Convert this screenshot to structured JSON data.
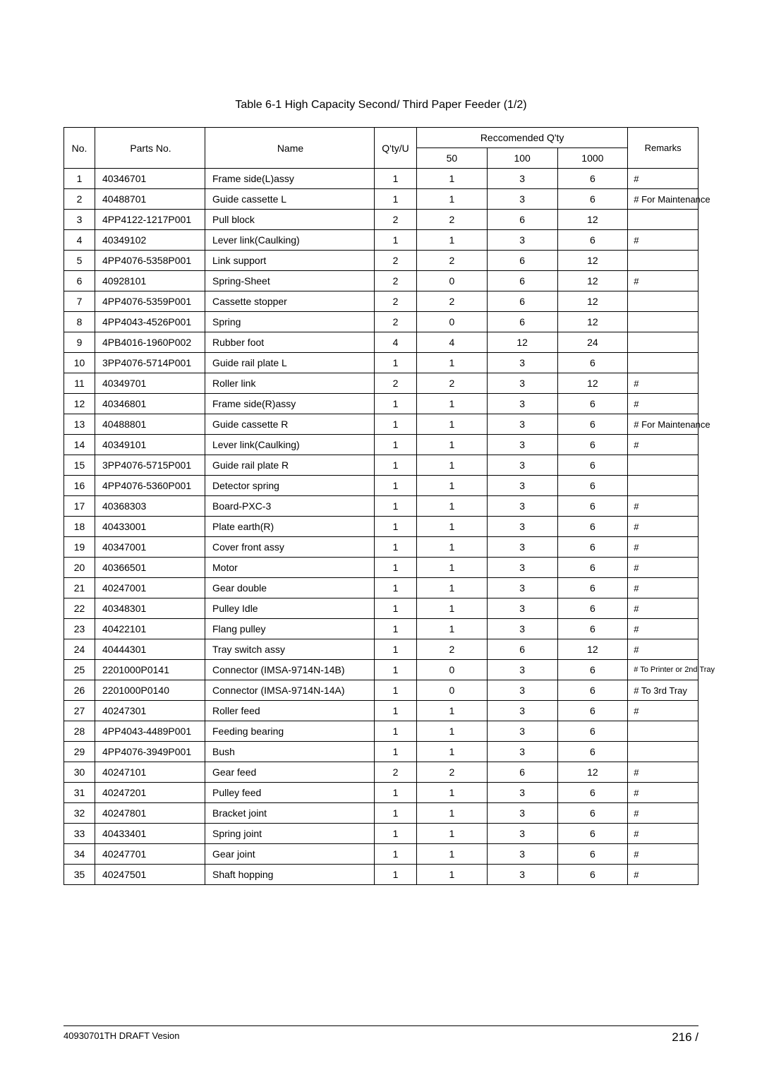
{
  "caption": "Table 6-1 High Capacity Second/ Third Paper Feeder (1/2)",
  "footer": {
    "left": "40930701TH  DRAFT Vesion",
    "right": "216 /"
  },
  "columns": {
    "no": "No.",
    "parts": "Parts No.",
    "name": "Name",
    "qtyu": "Q'ty/U",
    "recc": "Reccomended Q'ty",
    "r50": "50",
    "r100": "100",
    "r1000": "1000",
    "remarks": "Remarks"
  },
  "rows": [
    {
      "no": "1",
      "parts": "40346701",
      "name": "Frame side(L)assy",
      "qtyu": "1",
      "r50": "1",
      "r100": "3",
      "r1000": "6",
      "remarks": "#"
    },
    {
      "no": "2",
      "parts": "40488701",
      "name": "Guide cassette L",
      "qtyu": "1",
      "r50": "1",
      "r100": "3",
      "r1000": "6",
      "remarks": "# For Maintenance"
    },
    {
      "no": "3",
      "parts": "4PP4122-1217P001",
      "name": "Pull block",
      "qtyu": "2",
      "r50": "2",
      "r100": "6",
      "r1000": "12",
      "remarks": ""
    },
    {
      "no": "4",
      "parts": "40349102",
      "name": "Lever link(Caulking)",
      "qtyu": "1",
      "r50": "1",
      "r100": "3",
      "r1000": "6",
      "remarks": "#"
    },
    {
      "no": "5",
      "parts": "4PP4076-5358P001",
      "name": "Link support",
      "qtyu": "2",
      "r50": "2",
      "r100": "6",
      "r1000": "12",
      "remarks": ""
    },
    {
      "no": "6",
      "parts": "40928101",
      "name": "Spring-Sheet",
      "qtyu": "2",
      "r50": "0",
      "r100": "6",
      "r1000": "12",
      "remarks": "#"
    },
    {
      "no": "7",
      "parts": "4PP4076-5359P001",
      "name": "Cassette stopper",
      "qtyu": "2",
      "r50": "2",
      "r100": "6",
      "r1000": "12",
      "remarks": ""
    },
    {
      "no": "8",
      "parts": "4PP4043-4526P001",
      "name": "Spring",
      "qtyu": "2",
      "r50": "0",
      "r100": "6",
      "r1000": "12",
      "remarks": ""
    },
    {
      "no": "9",
      "parts": "4PB4016-1960P002",
      "name": "Rubber foot",
      "qtyu": "4",
      "r50": "4",
      "r100": "12",
      "r1000": "24",
      "remarks": ""
    },
    {
      "no": "10",
      "parts": "3PP4076-5714P001",
      "name": "Guide rail plate L",
      "qtyu": "1",
      "r50": "1",
      "r100": "3",
      "r1000": "6",
      "remarks": ""
    },
    {
      "no": "11",
      "parts": "40349701",
      "name": "Roller link",
      "qtyu": "2",
      "r50": "2",
      "r100": "3",
      "r1000": "12",
      "remarks": "#"
    },
    {
      "no": "12",
      "parts": "40346801",
      "name": "Frame side(R)assy",
      "qtyu": "1",
      "r50": "1",
      "r100": "3",
      "r1000": "6",
      "remarks": "#"
    },
    {
      "no": "13",
      "parts": "40488801",
      "name": "Guide cassette R",
      "qtyu": "1",
      "r50": "1",
      "r100": "3",
      "r1000": "6",
      "remarks": "# For Maintenance"
    },
    {
      "no": "14",
      "parts": "40349101",
      "name": "Lever link(Caulking)",
      "qtyu": "1",
      "r50": "1",
      "r100": "3",
      "r1000": "6",
      "remarks": "#"
    },
    {
      "no": "15",
      "parts": "3PP4076-5715P001",
      "name": "Guide rail plate R",
      "qtyu": "1",
      "r50": "1",
      "r100": "3",
      "r1000": "6",
      "remarks": ""
    },
    {
      "no": "16",
      "parts": "4PP4076-5360P001",
      "name": "Detector spring",
      "qtyu": "1",
      "r50": "1",
      "r100": "3",
      "r1000": "6",
      "remarks": ""
    },
    {
      "no": "17",
      "parts": "40368303",
      "name": "Board-PXC-3",
      "qtyu": "1",
      "r50": "1",
      "r100": "3",
      "r1000": "6",
      "remarks": "#"
    },
    {
      "no": "18",
      "parts": "40433001",
      "name": "Plate earth(R)",
      "qtyu": "1",
      "r50": "1",
      "r100": "3",
      "r1000": "6",
      "remarks": "#"
    },
    {
      "no": "19",
      "parts": "40347001",
      "name": "Cover front assy",
      "qtyu": "1",
      "r50": "1",
      "r100": "3",
      "r1000": "6",
      "remarks": "#"
    },
    {
      "no": "20",
      "parts": "40366501",
      "name": "Motor",
      "qtyu": "1",
      "r50": "1",
      "r100": "3",
      "r1000": "6",
      "remarks": "#"
    },
    {
      "no": "21",
      "parts": "40247001",
      "name": "Gear double",
      "qtyu": "1",
      "r50": "1",
      "r100": "3",
      "r1000": "6",
      "remarks": "#"
    },
    {
      "no": "22",
      "parts": "40348301",
      "name": "Pulley Idle",
      "qtyu": "1",
      "r50": "1",
      "r100": "3",
      "r1000": "6",
      "remarks": "#"
    },
    {
      "no": "23",
      "parts": "40422101",
      "name": "Flang pulley",
      "qtyu": "1",
      "r50": "1",
      "r100": "3",
      "r1000": "6",
      "remarks": "#"
    },
    {
      "no": "24",
      "parts": "40444301",
      "name": "Tray switch assy",
      "qtyu": "1",
      "r50": "2",
      "r100": "6",
      "r1000": "12",
      "remarks": "#"
    },
    {
      "no": "25",
      "parts": "2201000P0141",
      "name": "Connector (IMSA-9714N-14B)",
      "qtyu": "1",
      "r50": "0",
      "r100": "3",
      "r1000": "6",
      "remarks": "# To Printer or 2nd Tray",
      "small": true
    },
    {
      "no": "26",
      "parts": "2201000P0140",
      "name": "Connector (IMSA-9714N-14A)",
      "qtyu": "1",
      "r50": "0",
      "r100": "3",
      "r1000": "6",
      "remarks": "# To 3rd Tray"
    },
    {
      "no": "27",
      "parts": "40247301",
      "name": "Roller feed",
      "qtyu": "1",
      "r50": "1",
      "r100": "3",
      "r1000": "6",
      "remarks": "#"
    },
    {
      "no": "28",
      "parts": "4PP4043-4489P001",
      "name": "Feeding bearing",
      "qtyu": "1",
      "r50": "1",
      "r100": "3",
      "r1000": "6",
      "remarks": ""
    },
    {
      "no": "29",
      "parts": "4PP4076-3949P001",
      "name": "Bush",
      "qtyu": "1",
      "r50": "1",
      "r100": "3",
      "r1000": "6",
      "remarks": ""
    },
    {
      "no": "30",
      "parts": "40247101",
      "name": "Gear feed",
      "qtyu": "2",
      "r50": "2",
      "r100": "6",
      "r1000": "12",
      "remarks": "#"
    },
    {
      "no": "31",
      "parts": "40247201",
      "name": "Pulley feed",
      "qtyu": "1",
      "r50": "1",
      "r100": "3",
      "r1000": "6",
      "remarks": "#"
    },
    {
      "no": "32",
      "parts": "40247801",
      "name": "Bracket joint",
      "qtyu": "1",
      "r50": "1",
      "r100": "3",
      "r1000": "6",
      "remarks": "#"
    },
    {
      "no": "33",
      "parts": "40433401",
      "name": "Spring joint",
      "qtyu": "1",
      "r50": "1",
      "r100": "3",
      "r1000": "6",
      "remarks": "#"
    },
    {
      "no": "34",
      "parts": "40247701",
      "name": "Gear joint",
      "qtyu": "1",
      "r50": "1",
      "r100": "3",
      "r1000": "6",
      "remarks": "#"
    },
    {
      "no": "35",
      "parts": "40247501",
      "name": "Shaft hopping",
      "qtyu": "1",
      "r50": "1",
      "r100": "3",
      "r1000": "6",
      "remarks": "#"
    }
  ]
}
